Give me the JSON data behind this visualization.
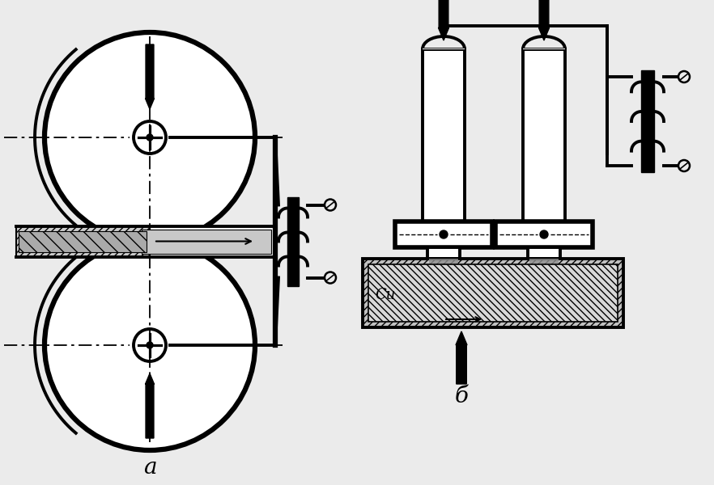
{
  "bg_color": "#ebebeb",
  "line_color": "#000000",
  "label_a": "a",
  "label_b": "б",
  "label_cu": "Cu"
}
